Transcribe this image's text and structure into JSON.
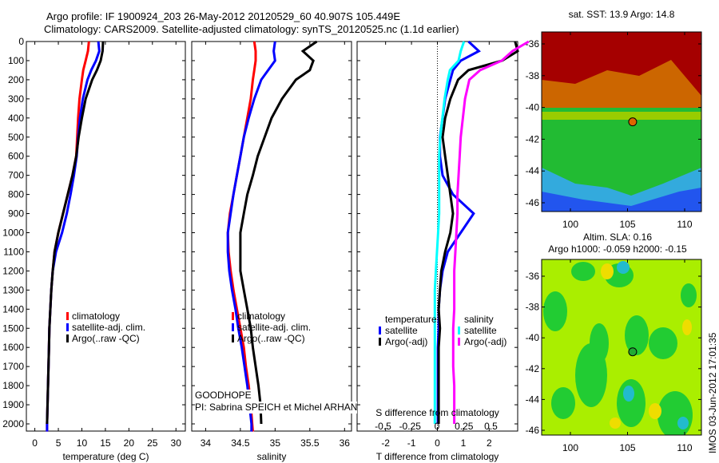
{
  "title_line1": "Argo profile: IF 1900924_203 26-May-2012 20120529_60 40.907S 105.449E",
  "title_line2": "Climatology: CARS2009. Satellite-adjusted climatology: synTS_20120525.nc (1.1d earlier)",
  "annotation": {
    "project": "GOODHOPE",
    "pi": "PI: Sabrina SPEICH et Michel ARHAN"
  },
  "side_label": "IMOS 03-Jun-2012 17:01:35",
  "colors": {
    "climatology": "#ff0000",
    "satellite": "#0000ff",
    "argo": "#000000",
    "sal_satellite": "#00ffff",
    "sal_argo": "#ff00ff"
  },
  "chart_data": [
    {
      "type": "line",
      "id": "temperature",
      "xlabel": "temperature (deg C)",
      "ylabel": "depth",
      "xlim": [
        -1.8,
        32
      ],
      "ylim": [
        2040,
        0
      ],
      "xticks": [
        0,
        5,
        10,
        15,
        20,
        25,
        30
      ],
      "yticks": [
        0,
        100,
        200,
        300,
        400,
        500,
        600,
        700,
        800,
        900,
        1000,
        1100,
        1200,
        1300,
        1400,
        1500,
        1600,
        1700,
        1800,
        1900,
        2000
      ],
      "depth": [
        0,
        50,
        100,
        150,
        200,
        300,
        400,
        500,
        600,
        700,
        800,
        900,
        1000,
        1100,
        1200,
        1300,
        1400,
        1500,
        1600,
        1700,
        1800,
        1900,
        2000,
        2040
      ],
      "legend": [
        "climatology",
        "satellite-adj. clim.",
        "Argo(..raw -QC)"
      ],
      "series": [
        {
          "name": "climatology",
          "color": "#ff0000",
          "values": [
            11.5,
            11.3,
            10.8,
            10.3,
            10,
            9.5,
            9.2,
            9,
            8.8,
            8,
            7,
            6,
            5,
            4.2,
            3.8,
            3.5,
            3.3,
            3.1,
            3,
            2.9,
            2.8,
            2.7,
            2.6,
            2.6
          ]
        },
        {
          "name": "satellite-adj. clim.",
          "color": "#0000ff",
          "values": [
            13.5,
            13.7,
            13,
            12,
            11.2,
            10.2,
            9.6,
            9.2,
            8.9,
            8.3,
            7.6,
            6.8,
            5.8,
            4.5,
            3.8,
            3.5,
            3.3,
            3.1,
            3,
            2.9,
            2.8,
            2.7,
            2.6,
            2.6
          ]
        },
        {
          "name": "Argo(..raw -QC)",
          "color": "#000000",
          "values": [
            14.5,
            14.4,
            14,
            13.2,
            12.2,
            10.8,
            10,
            9.3,
            8.8,
            8,
            7,
            6,
            5,
            4.2,
            3.8,
            3.5,
            3.3,
            3.1,
            3,
            2.9,
            2.8,
            2.7,
            2.6,
            null
          ]
        }
      ]
    },
    {
      "type": "line",
      "id": "salinity",
      "xlabel": "salinity",
      "ylabel": "depth",
      "xlim": [
        33.8,
        36.1
      ],
      "ylim": [
        2040,
        0
      ],
      "xticks": [
        34,
        34.5,
        35,
        35.5,
        36
      ],
      "depth": [
        0,
        50,
        100,
        150,
        200,
        300,
        400,
        500,
        600,
        700,
        800,
        900,
        1000,
        1100,
        1200,
        1300,
        1400,
        1500,
        1600,
        1700,
        1800,
        1900,
        2000,
        2040
      ],
      "legend": [
        "climatology",
        "satellite-adj. clim.",
        "Argo(..raw -QC)"
      ],
      "series": [
        {
          "name": "climatology",
          "color": "#ff0000",
          "values": [
            34.7,
            34.72,
            34.72,
            34.7,
            34.68,
            34.65,
            34.6,
            34.55,
            34.5,
            34.45,
            34.4,
            34.35,
            34.32,
            34.33,
            34.36,
            34.4,
            34.45,
            34.5,
            34.55,
            34.58,
            34.62,
            34.65,
            34.67,
            34.68
          ]
        },
        {
          "name": "satellite-adj. clim.",
          "color": "#0000ff",
          "values": [
            35.0,
            34.98,
            35.0,
            34.9,
            34.8,
            34.7,
            34.62,
            34.55,
            34.5,
            34.45,
            34.4,
            34.36,
            34.32,
            34.32,
            34.34,
            34.38,
            34.43,
            34.47,
            34.52,
            34.56,
            34.6,
            34.63,
            34.66,
            34.66
          ]
        },
        {
          "name": "Argo(..raw -QC)",
          "color": "#000000",
          "values": [
            35.6,
            35.4,
            35.55,
            35.5,
            35.3,
            35.1,
            34.95,
            34.85,
            34.75,
            34.68,
            34.6,
            34.55,
            34.5,
            34.5,
            34.5,
            34.55,
            34.6,
            34.65,
            34.68,
            34.72,
            34.76,
            34.79,
            34.8,
            null
          ]
        }
      ]
    },
    {
      "type": "line",
      "id": "differences",
      "xlabel": "T difference from climatology",
      "xlabel2": "S difference from climatology",
      "xlim": [
        -3.1,
        3.1
      ],
      "x2lim": [
        -0.75,
        0.75
      ],
      "ylim": [
        2040,
        0
      ],
      "xticks": [
        -2,
        -1,
        0,
        1,
        2
      ],
      "x2ticks": [
        -0.5,
        -0.25,
        0,
        0.25,
        0.5
      ],
      "depth": [
        0,
        50,
        100,
        150,
        200,
        300,
        400,
        500,
        600,
        700,
        800,
        900,
        1000,
        1100,
        1200,
        1300,
        1400,
        1500,
        1600,
        1700,
        1800,
        1900,
        2000
      ],
      "legend_temp": {
        "title": "temperature",
        "items": [
          "satellite",
          "Argo(-adj)"
        ]
      },
      "legend_sal": {
        "title": "salinity",
        "items": [
          "satellite",
          "Argo(-adj)"
        ]
      },
      "series": [
        {
          "name": "T satellite",
          "axis": "T",
          "color": "#0000ff",
          "values": [
            1.2,
            1.6,
            0.9,
            0.6,
            0.5,
            0.3,
            0.2,
            0.1,
            0.1,
            0.2,
            0.6,
            1.4,
            0.9,
            0.4,
            0.2,
            0.1,
            0.05,
            0.05,
            0.02,
            0.02,
            0.02,
            0.02,
            0.02
          ]
        },
        {
          "name": "T Argo(-adj)",
          "axis": "T",
          "color": "#000000",
          "values": [
            3,
            3.1,
            2.5,
            1.2,
            0.8,
            0.5,
            0.3,
            0.2,
            0.3,
            0.4,
            0.5,
            0.6,
            0.5,
            0.3,
            0.15,
            0.1,
            0.05,
            0.1,
            0.05,
            0.05,
            0.05,
            0.05,
            0.05
          ]
        },
        {
          "name": "S satellite",
          "axis": "S",
          "color": "#00ffff",
          "values": [
            0.25,
            0.22,
            0.2,
            0.12,
            0.1,
            0.07,
            0.05,
            0.03,
            0.02,
            0.02,
            0.02,
            0.02,
            0.01,
            0,
            -0.01,
            -0.02,
            -0.02,
            -0.02,
            -0.02,
            -0.02,
            -0.02,
            -0.02,
            -0.02
          ]
        },
        {
          "name": "S Argo(-adj)",
          "axis": "S",
          "color": "#ff00ff",
          "values": [
            0.85,
            0.7,
            0.6,
            0.4,
            0.3,
            0.26,
            0.24,
            0.22,
            0.21,
            0.2,
            0.19,
            0.19,
            0.18,
            0.17,
            0.16,
            0.16,
            0.16,
            0.15,
            0.15,
            0.15,
            0.16,
            0.16,
            0.16
          ]
        }
      ]
    },
    {
      "type": "heatmap",
      "id": "sst_map",
      "title": "sat. SST: 13.9 Argo: 14.8",
      "xlim": [
        97.5,
        111.5
      ],
      "ylim": [
        -46.7,
        -35.2
      ],
      "xticks": [
        100,
        105,
        110
      ],
      "yticks": [
        -36,
        -38,
        -40,
        -42,
        -44,
        -46
      ],
      "profile_location": {
        "lon": 105.449,
        "lat": -40.907
      }
    },
    {
      "type": "heatmap",
      "id": "sla_map",
      "title": "Altim. SLA: 0.16",
      "subtitle": "Argo h1000: -0.059 h2000: -0.15",
      "xlim": [
        97.5,
        111.5
      ],
      "ylim": [
        -46.7,
        -35.2
      ],
      "xticks": [
        100,
        105,
        110
      ],
      "yticks": [
        -36,
        -38,
        -40,
        -42,
        -44,
        -46
      ],
      "profile_location": {
        "lon": 105.449,
        "lat": -40.907
      }
    }
  ]
}
